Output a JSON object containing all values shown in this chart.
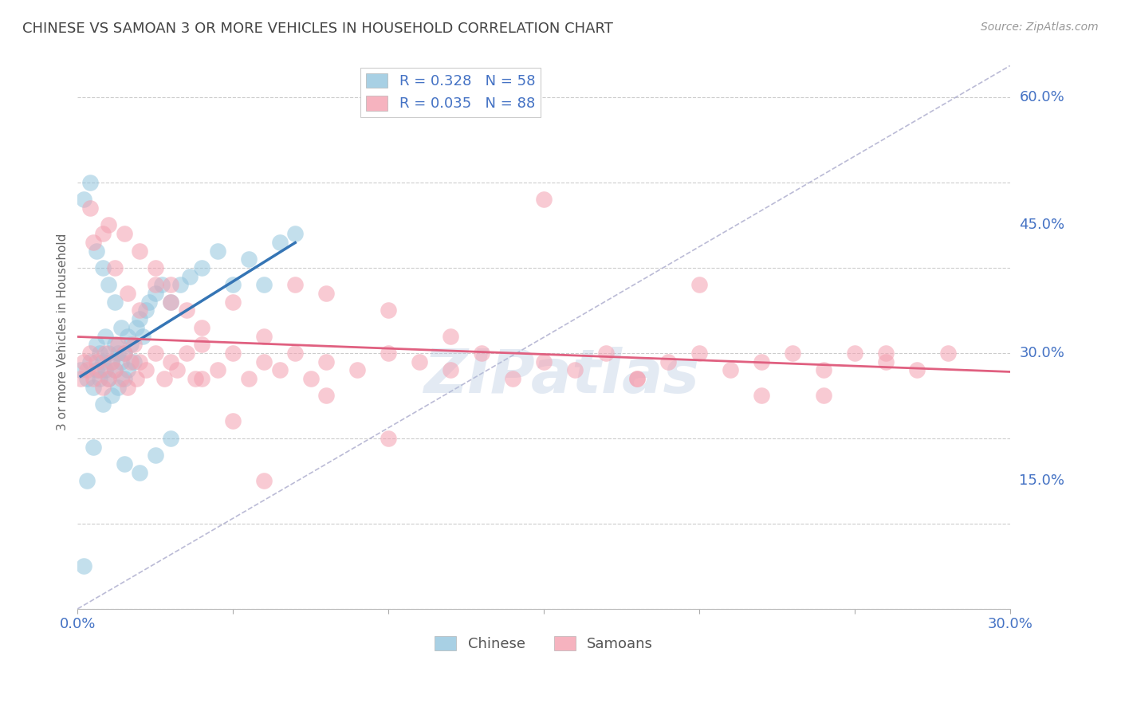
{
  "title": "CHINESE VS SAMOAN 3 OR MORE VEHICLES IN HOUSEHOLD CORRELATION CHART",
  "source": "Source: ZipAtlas.com",
  "ylabel": "3 or more Vehicles in Household",
  "xmin": 0.0,
  "xmax": 0.3,
  "ymin": 0.0,
  "ymax": 0.65,
  "yticks": [
    0.15,
    0.3,
    0.45,
    0.6
  ],
  "ytick_labels": [
    "15.0%",
    "30.0%",
    "45.0%",
    "60.0%"
  ],
  "xticks": [
    0.0,
    0.05,
    0.1,
    0.15,
    0.2,
    0.25,
    0.3
  ],
  "xtick_labels": [
    "0.0%",
    "",
    "",
    "",
    "",
    "",
    "30.0%"
  ],
  "chinese_R": 0.328,
  "chinese_N": 58,
  "samoan_R": 0.035,
  "samoan_N": 88,
  "chinese_color": "#92c5de",
  "samoan_color": "#f4a0b0",
  "trend_chinese_color": "#3575b5",
  "trend_samoan_color": "#e06080",
  "background_color": "#ffffff",
  "grid_color": "#cccccc",
  "axis_label_color": "#4472c4",
  "title_color": "#444444",
  "watermark": "ZIPatlas",
  "chinese_x": [
    0.001,
    0.002,
    0.003,
    0.003,
    0.004,
    0.005,
    0.005,
    0.006,
    0.006,
    0.007,
    0.007,
    0.008,
    0.008,
    0.009,
    0.009,
    0.01,
    0.01,
    0.011,
    0.011,
    0.012,
    0.012,
    0.013,
    0.013,
    0.014,
    0.014,
    0.015,
    0.015,
    0.016,
    0.016,
    0.017,
    0.018,
    0.019,
    0.02,
    0.021,
    0.022,
    0.023,
    0.025,
    0.027,
    0.03,
    0.033,
    0.036,
    0.04,
    0.045,
    0.05,
    0.055,
    0.06,
    0.065,
    0.07,
    0.002,
    0.004,
    0.006,
    0.008,
    0.01,
    0.012,
    0.015,
    0.02,
    0.025,
    0.03
  ],
  "chinese_y": [
    0.28,
    0.05,
    0.27,
    0.15,
    0.29,
    0.26,
    0.19,
    0.28,
    0.31,
    0.27,
    0.3,
    0.29,
    0.24,
    0.28,
    0.32,
    0.27,
    0.3,
    0.29,
    0.25,
    0.28,
    0.31,
    0.3,
    0.26,
    0.29,
    0.33,
    0.3,
    0.27,
    0.32,
    0.28,
    0.31,
    0.29,
    0.33,
    0.34,
    0.32,
    0.35,
    0.36,
    0.37,
    0.38,
    0.36,
    0.38,
    0.39,
    0.4,
    0.42,
    0.38,
    0.41,
    0.38,
    0.43,
    0.44,
    0.48,
    0.5,
    0.42,
    0.4,
    0.38,
    0.36,
    0.17,
    0.16,
    0.18,
    0.2
  ],
  "samoan_x": [
    0.001,
    0.002,
    0.003,
    0.004,
    0.005,
    0.006,
    0.007,
    0.008,
    0.009,
    0.01,
    0.011,
    0.012,
    0.013,
    0.014,
    0.015,
    0.016,
    0.017,
    0.018,
    0.019,
    0.02,
    0.022,
    0.025,
    0.028,
    0.03,
    0.032,
    0.035,
    0.038,
    0.04,
    0.045,
    0.05,
    0.055,
    0.06,
    0.065,
    0.07,
    0.075,
    0.08,
    0.09,
    0.1,
    0.11,
    0.12,
    0.13,
    0.14,
    0.15,
    0.16,
    0.17,
    0.18,
    0.19,
    0.2,
    0.21,
    0.22,
    0.23,
    0.24,
    0.25,
    0.26,
    0.27,
    0.28,
    0.005,
    0.01,
    0.015,
    0.02,
    0.025,
    0.03,
    0.035,
    0.04,
    0.05,
    0.06,
    0.07,
    0.08,
    0.1,
    0.12,
    0.15,
    0.18,
    0.2,
    0.22,
    0.24,
    0.26,
    0.004,
    0.008,
    0.012,
    0.016,
    0.02,
    0.025,
    0.03,
    0.04,
    0.05,
    0.06,
    0.08,
    0.1
  ],
  "samoan_y": [
    0.27,
    0.29,
    0.28,
    0.3,
    0.27,
    0.29,
    0.28,
    0.26,
    0.3,
    0.27,
    0.29,
    0.28,
    0.31,
    0.27,
    0.3,
    0.26,
    0.29,
    0.31,
    0.27,
    0.29,
    0.28,
    0.3,
    0.27,
    0.29,
    0.28,
    0.3,
    0.27,
    0.31,
    0.28,
    0.3,
    0.27,
    0.29,
    0.28,
    0.3,
    0.27,
    0.29,
    0.28,
    0.3,
    0.29,
    0.28,
    0.3,
    0.27,
    0.29,
    0.28,
    0.3,
    0.27,
    0.29,
    0.3,
    0.28,
    0.29,
    0.3,
    0.28,
    0.3,
    0.29,
    0.28,
    0.3,
    0.43,
    0.45,
    0.44,
    0.42,
    0.4,
    0.38,
    0.35,
    0.33,
    0.36,
    0.32,
    0.38,
    0.37,
    0.35,
    0.32,
    0.48,
    0.27,
    0.38,
    0.25,
    0.25,
    0.3,
    0.47,
    0.44,
    0.4,
    0.37,
    0.35,
    0.38,
    0.36,
    0.27,
    0.22,
    0.15,
    0.25,
    0.2
  ]
}
